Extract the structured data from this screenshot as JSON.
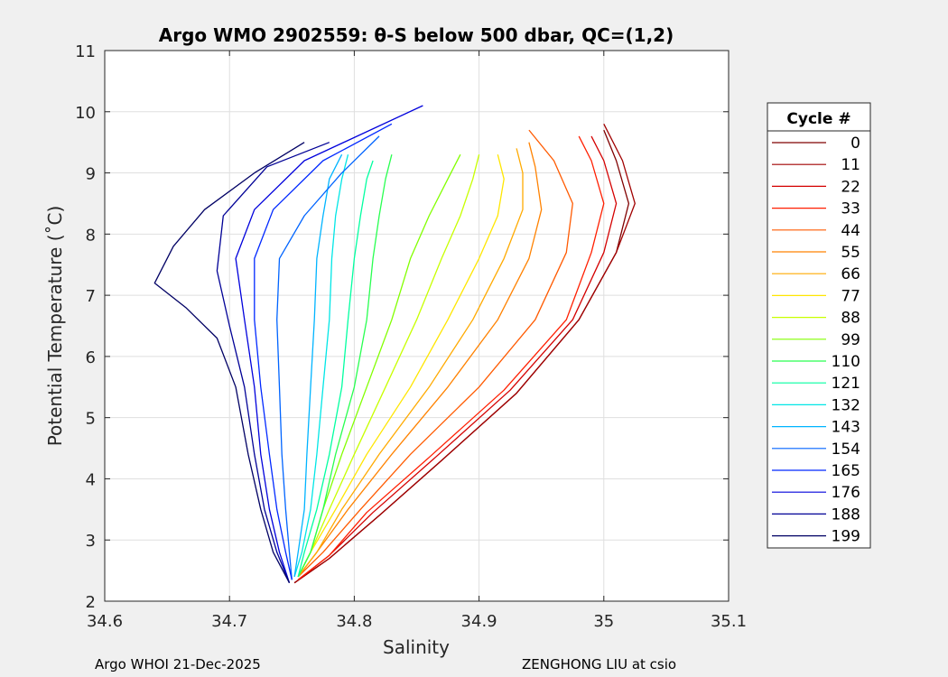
{
  "chart_data": {
    "type": "line",
    "title": "Argo WMO 2902559: θ-S below 500 dbar,  QC=(1,2)",
    "xlabel": "Salinity",
    "ylabel": "Potential Temperature (˚C)",
    "xlim": [
      34.6,
      35.1
    ],
    "ylim": [
      2,
      11
    ],
    "xticks": [
      "34.6",
      "34.7",
      "34.8",
      "34.9",
      "35",
      "35.1"
    ],
    "yticks": [
      "2",
      "3",
      "4",
      "5",
      "6",
      "7",
      "8",
      "9",
      "10",
      "11"
    ],
    "grid": true,
    "legend_title": "Cycle #",
    "legend_placement": "right, outside plot area",
    "series": [
      {
        "name": "0",
        "color": "#800000",
        "x": [
          34.752,
          34.78,
          34.82,
          34.87,
          34.93,
          34.98,
          35.01,
          35.02,
          35.01,
          35.0
        ],
        "y": [
          2.3,
          2.7,
          3.4,
          4.3,
          5.4,
          6.6,
          7.7,
          8.5,
          9.2,
          9.7
        ]
      },
      {
        "name": "11",
        "color": "#a00000",
        "x": [
          34.752,
          34.78,
          34.82,
          34.87,
          34.93,
          34.98,
          35.01,
          35.025,
          35.015,
          35.0
        ],
        "y": [
          2.3,
          2.7,
          3.4,
          4.3,
          5.4,
          6.6,
          7.7,
          8.5,
          9.2,
          9.8
        ]
      },
      {
        "name": "22",
        "color": "#d40000",
        "x": [
          34.755,
          34.78,
          34.815,
          34.865,
          34.925,
          34.975,
          35.0,
          35.01,
          35.0,
          34.99
        ],
        "y": [
          2.35,
          2.75,
          3.45,
          4.35,
          5.45,
          6.6,
          7.7,
          8.5,
          9.2,
          9.6
        ]
      },
      {
        "name": "33",
        "color": "#ff1e00",
        "x": [
          34.755,
          34.78,
          34.81,
          34.86,
          34.92,
          34.97,
          34.99,
          35.0,
          34.99,
          34.98
        ],
        "y": [
          2.35,
          2.75,
          3.45,
          4.35,
          5.45,
          6.6,
          7.7,
          8.5,
          9.2,
          9.6
        ]
      },
      {
        "name": "44",
        "color": "#ff5a00",
        "x": [
          34.755,
          34.775,
          34.805,
          34.845,
          34.9,
          34.945,
          34.97,
          34.975,
          34.96,
          34.94
        ],
        "y": [
          2.4,
          2.8,
          3.5,
          4.4,
          5.5,
          6.6,
          7.7,
          8.5,
          9.2,
          9.7
        ]
      },
      {
        "name": "55",
        "color": "#ff8200",
        "x": [
          34.755,
          34.77,
          34.795,
          34.83,
          34.875,
          34.915,
          34.94,
          34.95,
          34.945,
          34.94
        ],
        "y": [
          2.4,
          2.8,
          3.5,
          4.4,
          5.5,
          6.6,
          7.6,
          8.4,
          9.1,
          9.5
        ]
      },
      {
        "name": "66",
        "color": "#ffaa00",
        "x": [
          34.755,
          34.77,
          34.79,
          34.82,
          34.86,
          34.895,
          34.92,
          34.935,
          34.935,
          34.93
        ],
        "y": [
          2.4,
          2.8,
          3.5,
          4.4,
          5.5,
          6.6,
          7.6,
          8.4,
          9.0,
          9.4
        ]
      },
      {
        "name": "77",
        "color": "#ffe600",
        "x": [
          34.755,
          34.765,
          34.785,
          34.81,
          34.845,
          34.875,
          34.9,
          34.915,
          34.92,
          34.915
        ],
        "y": [
          2.4,
          2.8,
          3.5,
          4.4,
          5.5,
          6.6,
          7.6,
          8.3,
          8.9,
          9.3
        ]
      },
      {
        "name": "88",
        "color": "#c8ff00",
        "x": [
          34.755,
          34.765,
          34.78,
          34.8,
          34.825,
          34.85,
          34.87,
          34.885,
          34.895,
          34.9
        ],
        "y": [
          2.4,
          2.8,
          3.5,
          4.4,
          5.5,
          6.6,
          7.6,
          8.3,
          8.9,
          9.3
        ]
      },
      {
        "name": "99",
        "color": "#82ff00",
        "x": [
          34.755,
          34.765,
          34.775,
          34.79,
          34.81,
          34.83,
          34.845,
          34.86,
          34.875,
          34.885
        ],
        "y": [
          2.4,
          2.8,
          3.5,
          4.4,
          5.5,
          6.6,
          7.6,
          8.3,
          8.9,
          9.3
        ]
      },
      {
        "name": "110",
        "color": "#28ff50",
        "x": [
          34.755,
          34.765,
          34.775,
          34.785,
          34.8,
          34.81,
          34.815,
          34.82,
          34.825,
          34.83
        ],
        "y": [
          2.4,
          2.8,
          3.5,
          4.4,
          5.5,
          6.6,
          7.6,
          8.3,
          8.9,
          9.3
        ]
      },
      {
        "name": "121",
        "color": "#00ffa0",
        "x": [
          34.755,
          34.76,
          34.77,
          34.78,
          34.79,
          34.795,
          34.8,
          34.805,
          34.81,
          34.815
        ],
        "y": [
          2.4,
          2.8,
          3.5,
          4.4,
          5.5,
          6.6,
          7.6,
          8.3,
          8.9,
          9.2
        ]
      },
      {
        "name": "132",
        "color": "#00e6e6",
        "x": [
          34.752,
          34.758,
          34.765,
          34.77,
          34.775,
          34.78,
          34.782,
          34.785,
          34.79,
          34.795
        ],
        "y": [
          2.4,
          2.8,
          3.5,
          4.4,
          5.5,
          6.6,
          7.6,
          8.3,
          8.9,
          9.3
        ]
      },
      {
        "name": "143",
        "color": "#00b4ff",
        "x": [
          34.752,
          34.755,
          34.76,
          34.762,
          34.765,
          34.768,
          34.77,
          34.775,
          34.78,
          34.79
        ],
        "y": [
          2.4,
          2.8,
          3.5,
          4.4,
          5.5,
          6.6,
          7.6,
          8.3,
          8.9,
          9.3
        ]
      },
      {
        "name": "154",
        "color": "#0064ff",
        "x": [
          34.75,
          34.748,
          34.745,
          34.742,
          34.74,
          34.738,
          34.74,
          34.76,
          34.79,
          34.82
        ],
        "y": [
          2.35,
          2.8,
          3.5,
          4.4,
          5.5,
          6.6,
          7.6,
          8.3,
          9.0,
          9.6
        ]
      },
      {
        "name": "165",
        "color": "#0028ff",
        "x": [
          34.75,
          34.745,
          34.738,
          34.732,
          34.725,
          34.72,
          34.72,
          34.735,
          34.775,
          34.83
        ],
        "y": [
          2.35,
          2.8,
          3.5,
          4.4,
          5.5,
          6.6,
          7.6,
          8.4,
          9.2,
          9.8
        ]
      },
      {
        "name": "176",
        "color": "#0000dc",
        "x": [
          34.748,
          34.74,
          34.732,
          34.725,
          34.72,
          34.712,
          34.705,
          34.72,
          34.76,
          34.855
        ],
        "y": [
          2.3,
          2.8,
          3.5,
          4.4,
          5.5,
          6.6,
          7.6,
          8.4,
          9.2,
          10.1
        ]
      },
      {
        "name": "188",
        "color": "#000096",
        "x": [
          34.748,
          34.738,
          34.728,
          34.72,
          34.712,
          34.7,
          34.69,
          34.695,
          34.73,
          34.78
        ],
        "y": [
          2.3,
          2.8,
          3.5,
          4.4,
          5.5,
          6.5,
          7.4,
          8.3,
          9.1,
          9.5
        ]
      },
      {
        "name": "199",
        "color": "#000064",
        "x": [
          34.748,
          34.735,
          34.725,
          34.715,
          34.705,
          34.69,
          34.665,
          34.64,
          34.655,
          34.68,
          34.72,
          34.76
        ],
        "y": [
          2.3,
          2.8,
          3.5,
          4.4,
          5.5,
          6.3,
          6.8,
          7.2,
          7.8,
          8.4,
          9.0,
          9.5
        ]
      }
    ]
  },
  "footer": {
    "left": "Argo WHOI 21-Dec-2025",
    "right": "ZENGHONG LIU at csio"
  }
}
